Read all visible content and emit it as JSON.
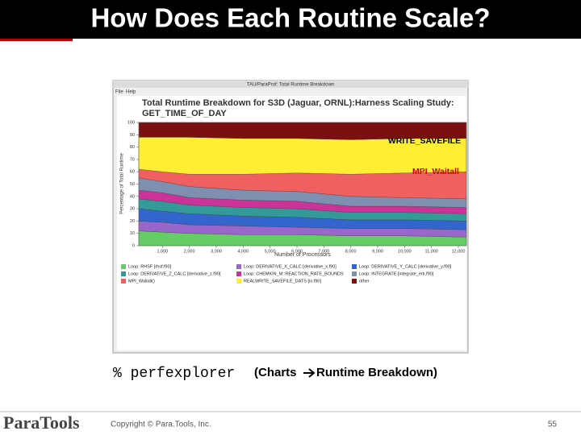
{
  "header": {
    "title": "How Does Each Routine Scale?"
  },
  "window": {
    "title": "TAU/ParaProf: Total Runtime Breakdown",
    "menu": [
      "File",
      "Help"
    ]
  },
  "chart_data": {
    "type": "stacked_area",
    "title": "Total Runtime Breakdown for S3D (Jaguar, ORNL):Harness Scaling Study:",
    "subtitle": "GET_TIME_OF_DAY",
    "x_label": "Number of Processors",
    "y_label": "Percentage of Total Runtime",
    "x": [
      120,
      1000,
      2000,
      4000,
      6000,
      8000,
      10000,
      12300
    ],
    "xlim": [
      120,
      12300
    ],
    "xticks": [
      {
        "value": 1000,
        "label": "1,000"
      },
      {
        "value": 2000,
        "label": "2,000"
      },
      {
        "value": 3000,
        "label": "3,000"
      },
      {
        "value": 4000,
        "label": "4,000"
      },
      {
        "value": 5000,
        "label": "5,000"
      },
      {
        "value": 6000,
        "label": "6,000"
      },
      {
        "value": 7000,
        "label": "7,000"
      },
      {
        "value": 8000,
        "label": "8,000"
      },
      {
        "value": 9000,
        "label": "9,000"
      },
      {
        "value": 10000,
        "label": "10,000"
      },
      {
        "value": 11000,
        "label": "11,000"
      },
      {
        "value": 12000,
        "label": "12,000"
      }
    ],
    "ylim": [
      0,
      100
    ],
    "yticks": [
      0,
      10,
      20,
      30,
      40,
      50,
      60,
      70,
      80,
      90,
      100
    ],
    "series": [
      {
        "name": "Loop: RHSF [rhsf.f90]",
        "color": "#66cc66",
        "values": [
          12,
          11,
          10,
          9,
          9,
          8,
          8,
          7
        ]
      },
      {
        "name": "Loop: DERIVATIVE_X_CALC [derivative_x.f90]",
        "color": "#9966cc",
        "values": [
          8,
          8,
          7,
          7,
          6,
          6,
          6,
          6
        ]
      },
      {
        "name": "Loop: DERIVATIVE_Y_CALC [derivative_y.f90]",
        "color": "#3366cc",
        "values": [
          10,
          9,
          9,
          8,
          8,
          7,
          7,
          7
        ]
      },
      {
        "name": "Loop: DERIVATIVE_Z_CALC [derivative_z.f90]",
        "color": "#339999",
        "values": [
          8,
          8,
          7,
          7,
          7,
          6,
          6,
          6
        ]
      },
      {
        "name": "Loop: CHEMKIN_M::REACTION_RATE_BOUNDS",
        "color": "#cc3399",
        "values": [
          7,
          7,
          6,
          6,
          6,
          5,
          5,
          5
        ]
      },
      {
        "name": "Loop: INTEGRATE [integrate_erk.f90]",
        "color": "#7f8fb0",
        "values": [
          10,
          9,
          9,
          8,
          8,
          8,
          7,
          7
        ]
      },
      {
        "name": "MPI_Waitall()",
        "color": "#f06060",
        "values": [
          7,
          8,
          10,
          13,
          15,
          18,
          20,
          22
        ]
      },
      {
        "name": "REALWRITE_SAVEFILE_DATS [io.f90]",
        "color": "#ffee33",
        "values": [
          26,
          28,
          30,
          29,
          28,
          28,
          28,
          27
        ]
      },
      {
        "name": "other",
        "color": "#7a1010",
        "values": [
          12,
          12,
          12,
          13,
          13,
          14,
          13,
          13
        ]
      }
    ],
    "annotations": [
      "WRITE_SAVEFILE",
      "MPI_Waitall"
    ],
    "grid": false
  },
  "caption": {
    "command": "% perfexplorer",
    "before": "(Charts",
    "after": "Runtime Breakdown)"
  },
  "footer": {
    "logo": "ParaTools",
    "copyright": "Copyright © Para.Tools, Inc.",
    "page": 55
  }
}
